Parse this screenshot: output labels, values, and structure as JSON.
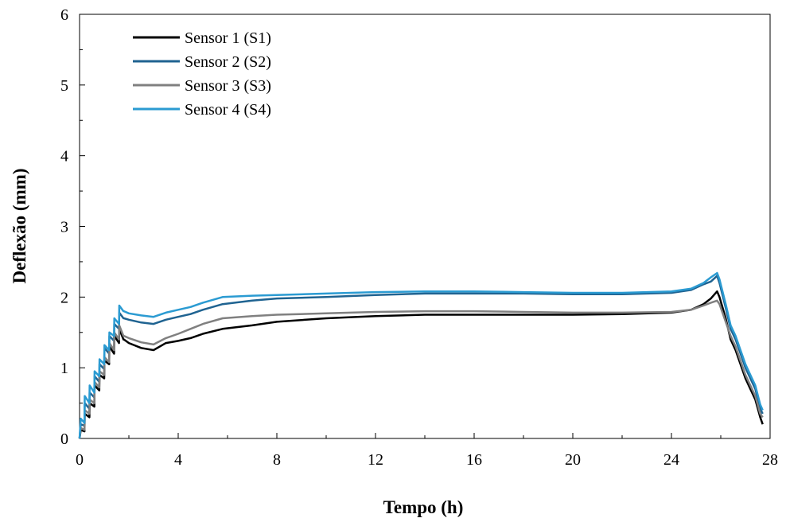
{
  "chart_data": {
    "type": "line",
    "title": "",
    "xlabel": "Tempo (h)",
    "ylabel": "Deflexão (mm)",
    "xlim": [
      0,
      28
    ],
    "ylim": [
      0,
      6
    ],
    "xticks": [
      0,
      4,
      8,
      12,
      16,
      20,
      24,
      28
    ],
    "yticks": [
      0,
      1,
      2,
      3,
      4,
      5,
      6
    ],
    "grid": false,
    "legend_position": "top-left",
    "series": [
      {
        "name": "Sensor 1 (S1)",
        "color": "#000000",
        "x": [
          0,
          0.05,
          0.2,
          0.21,
          0.4,
          0.41,
          0.6,
          0.61,
          0.8,
          0.81,
          1.0,
          1.01,
          1.2,
          1.21,
          1.4,
          1.41,
          1.6,
          1.61,
          1.78,
          1.8,
          2.0,
          2.5,
          3.0,
          3.5,
          4.0,
          4.5,
          5.0,
          5.8,
          7.0,
          8.0,
          10.0,
          12.0,
          14.0,
          16.0,
          18.0,
          20.0,
          22.0,
          24.0,
          24.8,
          25.3,
          25.6,
          25.85,
          25.95,
          26.2,
          26.4,
          26.6,
          26.8,
          27.0,
          27.2,
          27.4,
          27.6,
          27.7
        ],
        "y": [
          0,
          0.12,
          0.1,
          0.35,
          0.3,
          0.5,
          0.45,
          0.75,
          0.68,
          0.9,
          0.85,
          1.1,
          1.05,
          1.3,
          1.2,
          1.45,
          1.35,
          1.55,
          1.4,
          1.4,
          1.35,
          1.28,
          1.25,
          1.35,
          1.38,
          1.42,
          1.48,
          1.55,
          1.6,
          1.65,
          1.7,
          1.73,
          1.75,
          1.75,
          1.75,
          1.75,
          1.76,
          1.78,
          1.82,
          1.9,
          1.98,
          2.08,
          2.0,
          1.7,
          1.4,
          1.25,
          1.05,
          0.85,
          0.7,
          0.55,
          0.3,
          0.2
        ]
      },
      {
        "name": "Sensor 2 (S2)",
        "color": "#1f6391",
        "x": [
          0,
          0.05,
          0.2,
          0.21,
          0.4,
          0.41,
          0.6,
          0.61,
          0.8,
          0.81,
          1.0,
          1.01,
          1.2,
          1.21,
          1.4,
          1.41,
          1.6,
          1.61,
          1.78,
          1.8,
          2.0,
          2.5,
          3.0,
          3.5,
          4.0,
          4.5,
          5.0,
          5.8,
          7.0,
          8.0,
          10.0,
          12.0,
          14.0,
          16.0,
          18.0,
          20.0,
          22.0,
          24.0,
          24.8,
          25.3,
          25.6,
          25.85,
          25.95,
          26.2,
          26.4,
          26.6,
          26.8,
          27.0,
          27.2,
          27.4,
          27.6,
          27.7
        ],
        "y": [
          0,
          0.2,
          0.18,
          0.5,
          0.42,
          0.65,
          0.58,
          0.88,
          0.8,
          1.05,
          0.98,
          1.28,
          1.2,
          1.45,
          1.38,
          1.62,
          1.55,
          1.78,
          1.7,
          1.7,
          1.68,
          1.64,
          1.62,
          1.68,
          1.72,
          1.76,
          1.82,
          1.9,
          1.95,
          1.98,
          2.0,
          2.03,
          2.05,
          2.05,
          2.05,
          2.04,
          2.04,
          2.06,
          2.1,
          2.18,
          2.22,
          2.3,
          2.2,
          1.85,
          1.55,
          1.4,
          1.2,
          1.0,
          0.85,
          0.7,
          0.42,
          0.35
        ]
      },
      {
        "name": "Sensor 3 (S3)",
        "color": "#808080",
        "x": [
          0,
          0.05,
          0.2,
          0.21,
          0.4,
          0.41,
          0.6,
          0.61,
          0.8,
          0.81,
          1.0,
          1.01,
          1.2,
          1.21,
          1.4,
          1.41,
          1.6,
          1.61,
          1.78,
          1.8,
          2.0,
          2.5,
          3.0,
          3.5,
          4.0,
          4.5,
          5.0,
          5.8,
          7.0,
          8.0,
          10.0,
          12.0,
          14.0,
          16.0,
          18.0,
          20.0,
          22.0,
          24.0,
          24.8,
          25.3,
          25.6,
          25.85,
          25.95,
          26.2,
          26.4,
          26.6,
          26.8,
          27.0,
          27.2,
          27.4,
          27.6,
          27.7
        ],
        "y": [
          0,
          0.15,
          0.12,
          0.4,
          0.35,
          0.55,
          0.5,
          0.8,
          0.72,
          0.95,
          0.9,
          1.15,
          1.08,
          1.35,
          1.25,
          1.5,
          1.4,
          1.6,
          1.45,
          1.45,
          1.42,
          1.36,
          1.33,
          1.42,
          1.48,
          1.55,
          1.62,
          1.7,
          1.73,
          1.75,
          1.77,
          1.79,
          1.8,
          1.8,
          1.79,
          1.78,
          1.78,
          1.79,
          1.82,
          1.88,
          1.92,
          1.95,
          1.9,
          1.65,
          1.45,
          1.3,
          1.1,
          0.9,
          0.75,
          0.6,
          0.35,
          0.3
        ]
      },
      {
        "name": "Sensor 4 (S4)",
        "color": "#2b9bd2",
        "x": [
          0,
          0.05,
          0.2,
          0.21,
          0.4,
          0.41,
          0.6,
          0.61,
          0.8,
          0.81,
          1.0,
          1.01,
          1.2,
          1.21,
          1.4,
          1.41,
          1.6,
          1.61,
          1.78,
          1.8,
          2.0,
          2.5,
          3.0,
          3.5,
          4.0,
          4.5,
          5.0,
          5.8,
          7.0,
          8.0,
          10.0,
          12.0,
          14.0,
          16.0,
          18.0,
          20.0,
          22.0,
          24.0,
          24.8,
          25.3,
          25.6,
          25.85,
          25.95,
          26.2,
          26.4,
          26.6,
          26.8,
          27.0,
          27.2,
          27.4,
          27.6,
          27.7
        ],
        "y": [
          0,
          0.28,
          0.22,
          0.6,
          0.5,
          0.75,
          0.65,
          0.95,
          0.88,
          1.12,
          1.05,
          1.32,
          1.25,
          1.5,
          1.45,
          1.7,
          1.62,
          1.88,
          1.8,
          1.8,
          1.77,
          1.74,
          1.72,
          1.78,
          1.82,
          1.86,
          1.92,
          2.0,
          2.02,
          2.03,
          2.05,
          2.07,
          2.08,
          2.08,
          2.07,
          2.06,
          2.06,
          2.08,
          2.12,
          2.2,
          2.28,
          2.34,
          2.25,
          1.9,
          1.6,
          1.45,
          1.25,
          1.05,
          0.9,
          0.75,
          0.48,
          0.4
        ]
      }
    ]
  }
}
